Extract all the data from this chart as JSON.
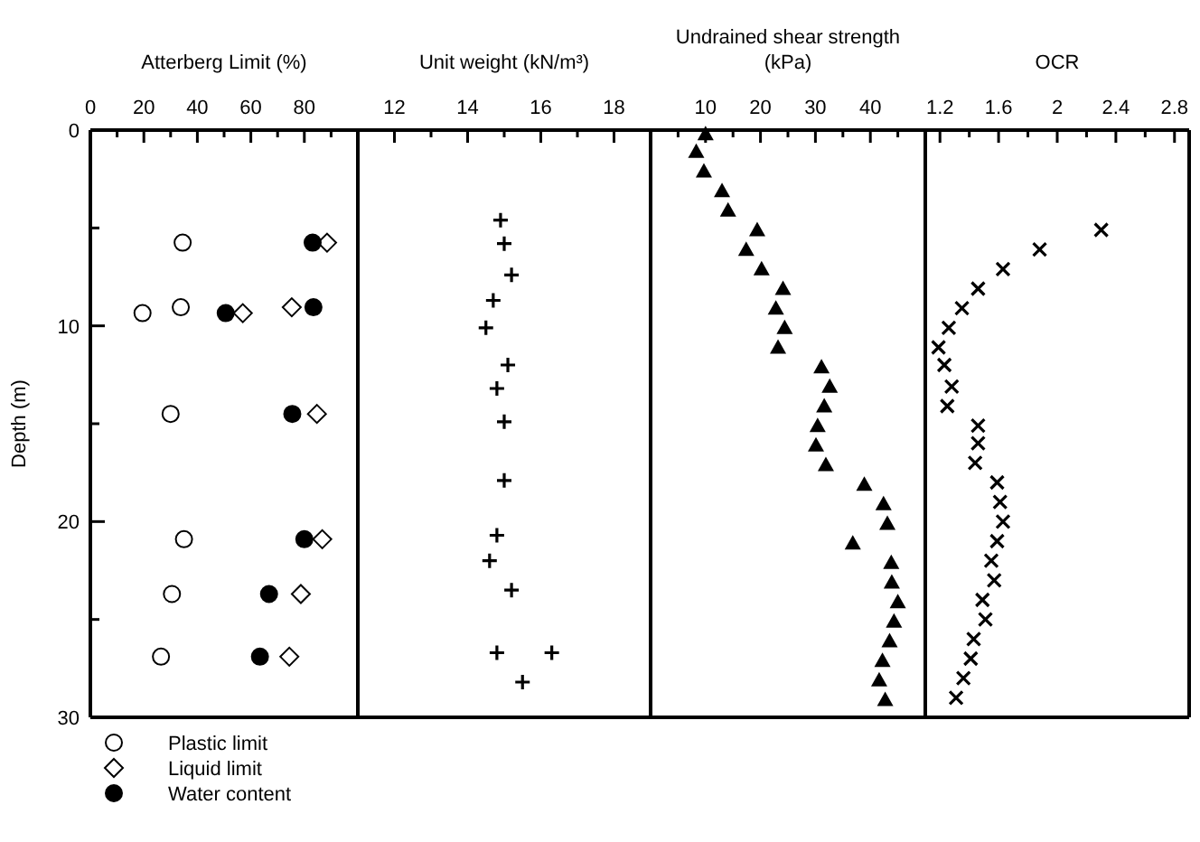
{
  "chart_data": [
    {
      "type": "scatter",
      "title": "Atterberg Limit (%)",
      "ylabel": "Depth (m)",
      "xlim": [
        0,
        100
      ],
      "xticks": [
        0,
        {
          "value": 10,
          "label": null
        },
        20,
        {
          "value": 30,
          "label": null
        },
        40,
        {
          "value": 50,
          "label": null
        },
        60,
        {
          "value": 70,
          "label": null
        },
        80,
        {
          "value": 90,
          "label": null
        }
      ],
      "ylim": [
        30,
        0
      ],
      "yticks": [
        0,
        {
          "value": 5,
          "label": null
        },
        10,
        {
          "value": 15,
          "label": null
        },
        20,
        {
          "value": 25,
          "label": null
        },
        30
      ],
      "legend": "bottom left",
      "series": [
        {
          "name": "Plastic limit",
          "marker": "circle",
          "color": "#ffffff",
          "x": [
            34.5,
            33.8,
            19.5,
            30,
            35,
            30.5,
            26.4
          ],
          "values": [
            5.75,
            9.05,
            9.35,
            14.5,
            20.9,
            23.7,
            26.9
          ]
        },
        {
          "name": "Liquid limit",
          "marker": "diamond",
          "color": "#ffffff",
          "x": [
            88.5,
            75.3,
            57,
            84.7,
            86.7,
            78.7,
            74.4
          ],
          "values": [
            5.75,
            9.05,
            9.35,
            14.5,
            20.9,
            23.7,
            26.9
          ]
        },
        {
          "name": "Water content",
          "marker": "circle",
          "color": "#000000",
          "x": [
            83.1,
            83.4,
            50.6,
            75.5,
            80,
            66.8,
            63.4
          ],
          "values": [
            5.75,
            9.05,
            9.35,
            14.5,
            20.9,
            23.7,
            26.9
          ]
        }
      ]
    },
    {
      "type": "scatter",
      "title": "Unit weight (kN/m³)",
      "xlim": [
        11,
        19
      ],
      "xticks": [
        12,
        {
          "value": 13,
          "label": null
        },
        14,
        {
          "value": 15,
          "label": null
        },
        16,
        {
          "value": 17,
          "label": null
        },
        18
      ],
      "ylim": [
        30,
        0
      ],
      "tick_labels": "x",
      "series": [
        {
          "marker": "plus",
          "color": "#000000",
          "x": [
            14.9,
            15.0,
            15.2,
            14.7,
            14.5,
            15.1,
            14.8,
            15.0,
            15.0,
            14.8,
            14.6,
            15.2,
            14.8,
            16.3,
            15.5
          ],
          "values": [
            4.6,
            5.8,
            7.4,
            8.7,
            10.1,
            12.0,
            13.2,
            14.9,
            17.9,
            20.7,
            22.0,
            23.5,
            26.7,
            26.7,
            28.2
          ]
        }
      ]
    },
    {
      "type": "scatter",
      "title": "Undrained shear strength (kPa)",
      "xlim": [
        0,
        50
      ],
      "xticks": [
        {
          "value": 5,
          "label": null
        },
        10,
        {
          "value": 15,
          "label": null
        },
        20,
        {
          "value": 25,
          "label": null
        },
        30,
        {
          "value": 35,
          "label": null
        },
        40,
        {
          "value": 45,
          "label": null
        }
      ],
      "ylim": [
        30,
        0
      ],
      "tick_labels": "x",
      "series": [
        {
          "marker": "triangle",
          "color": "#000000",
          "x": [
            10,
            8.3,
            9.7,
            13.0,
            14.1,
            19.4,
            17.4,
            20.2,
            24.1,
            22.8,
            24.4,
            23.2,
            31.1,
            32.6,
            31.6,
            30.4,
            30.1,
            31.9,
            38.9,
            42.4,
            43.1,
            36.8,
            43.8,
            43.9,
            45.0,
            44.3,
            43.5,
            42.2,
            41.6,
            42.7
          ],
          "values": [
            0.2,
            1.1,
            2.1,
            3.1,
            4.1,
            5.1,
            6.1,
            7.1,
            8.1,
            9.1,
            10.1,
            11.1,
            12.1,
            13.1,
            14.1,
            15.1,
            16.1,
            17.1,
            18.1,
            19.1,
            20.1,
            21.1,
            22.1,
            23.1,
            24.1,
            25.1,
            26.1,
            27.1,
            28.1,
            29.1
          ]
        }
      ]
    },
    {
      "type": "scatter",
      "title": "OCR",
      "xlim": [
        1.1,
        2.9
      ],
      "xticks": [
        1.2,
        {
          "value": 1.4,
          "label": null
        },
        1.6,
        {
          "value": 1.8,
          "label": null
        },
        2,
        {
          "value": 2.2,
          "label": null
        },
        2.4,
        {
          "value": 2.6,
          "label": null
        },
        2.8
      ],
      "ylim": [
        30,
        0
      ],
      "tick_labels": "x",
      "series": [
        {
          "marker": "cross",
          "color": "#000000",
          "x": [
            2.3,
            1.88,
            1.63,
            1.46,
            1.35,
            1.26,
            1.19,
            1.23,
            1.28,
            1.25,
            1.46,
            1.46,
            1.44,
            1.59,
            1.61,
            1.63,
            1.59,
            1.55,
            1.57,
            1.49,
            1.51,
            1.43,
            1.41,
            1.36,
            1.31
          ],
          "values": [
            5.1,
            6.1,
            7.1,
            8.1,
            9.1,
            10.1,
            11.1,
            12.0,
            13.1,
            14.1,
            15.1,
            16.0,
            17.0,
            18.0,
            19.0,
            20.0,
            21.0,
            22.0,
            23.0,
            24.0,
            25.0,
            26.0,
            27.0,
            28.0,
            29.0
          ]
        }
      ]
    }
  ]
}
